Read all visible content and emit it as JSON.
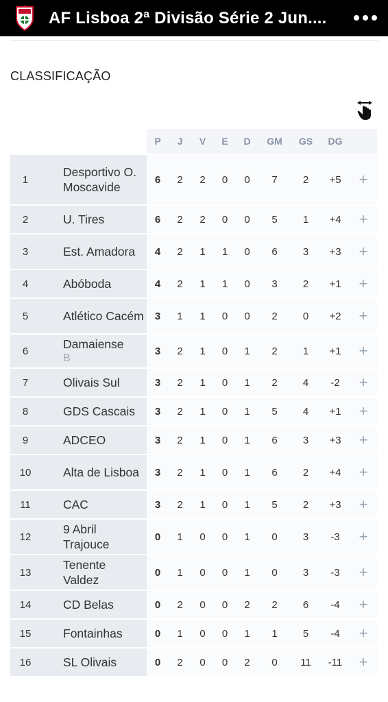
{
  "app": {
    "title": "AF Lisboa 2ª Divisão Série 2 Jun...."
  },
  "section": {
    "title": "CLASSIFICAÇÃO"
  },
  "headers": [
    "P",
    "J",
    "V",
    "E",
    "D",
    "GM",
    "GS",
    "DG"
  ],
  "expand_symbol": "+",
  "rows": [
    {
      "pos": "1",
      "name": "Desportivo O. Moscavide",
      "suffix": "",
      "p": "6",
      "j": "2",
      "v": "2",
      "e": "0",
      "d": "0",
      "gm": "7",
      "gs": "2",
      "dg": "+5"
    },
    {
      "pos": "2",
      "name": "U. Tires",
      "suffix": "",
      "p": "6",
      "j": "2",
      "v": "2",
      "e": "0",
      "d": "0",
      "gm": "5",
      "gs": "1",
      "dg": "+4"
    },
    {
      "pos": "3",
      "name": "Est. Amadora",
      "suffix": "",
      "p": "4",
      "j": "2",
      "v": "1",
      "e": "1",
      "d": "0",
      "gm": "6",
      "gs": "3",
      "dg": "+3"
    },
    {
      "pos": "4",
      "name": "Abóboda",
      "suffix": "",
      "p": "4",
      "j": "2",
      "v": "1",
      "e": "1",
      "d": "0",
      "gm": "3",
      "gs": "2",
      "dg": "+1"
    },
    {
      "pos": "5",
      "name": "Atlético Cacém",
      "suffix": "",
      "p": "3",
      "j": "1",
      "v": "1",
      "e": "0",
      "d": "0",
      "gm": "2",
      "gs": "0",
      "dg": "+2"
    },
    {
      "pos": "6",
      "name": "Damaiense",
      "suffix": "B",
      "p": "3",
      "j": "2",
      "v": "1",
      "e": "0",
      "d": "1",
      "gm": "2",
      "gs": "1",
      "dg": "+1"
    },
    {
      "pos": "7",
      "name": "Olivais Sul",
      "suffix": "",
      "p": "3",
      "j": "2",
      "v": "1",
      "e": "0",
      "d": "1",
      "gm": "2",
      "gs": "4",
      "dg": "-2"
    },
    {
      "pos": "8",
      "name": "GDS Cascais",
      "suffix": "",
      "p": "3",
      "j": "2",
      "v": "1",
      "e": "0",
      "d": "1",
      "gm": "5",
      "gs": "4",
      "dg": "+1"
    },
    {
      "pos": "9",
      "name": "ADCEO",
      "suffix": "",
      "p": "3",
      "j": "2",
      "v": "1",
      "e": "0",
      "d": "1",
      "gm": "6",
      "gs": "3",
      "dg": "+3"
    },
    {
      "pos": "10",
      "name": "Alta de Lisboa",
      "suffix": "",
      "p": "3",
      "j": "2",
      "v": "1",
      "e": "0",
      "d": "1",
      "gm": "6",
      "gs": "2",
      "dg": "+4"
    },
    {
      "pos": "11",
      "name": "CAC",
      "suffix": "",
      "p": "3",
      "j": "2",
      "v": "1",
      "e": "0",
      "d": "1",
      "gm": "5",
      "gs": "2",
      "dg": "+3"
    },
    {
      "pos": "12",
      "name": "9 Abril Trajouce",
      "suffix": "",
      "p": "0",
      "j": "1",
      "v": "0",
      "e": "0",
      "d": "1",
      "gm": "0",
      "gs": "3",
      "dg": "-3"
    },
    {
      "pos": "13",
      "name": "Tenente Valdez",
      "suffix": "",
      "p": "0",
      "j": "1",
      "v": "0",
      "e": "0",
      "d": "1",
      "gm": "0",
      "gs": "3",
      "dg": "-3"
    },
    {
      "pos": "14",
      "name": "CD Belas",
      "suffix": "",
      "p": "0",
      "j": "2",
      "v": "0",
      "e": "0",
      "d": "2",
      "gm": "2",
      "gs": "6",
      "dg": "-4"
    },
    {
      "pos": "15",
      "name": "Fontainhas",
      "suffix": "",
      "p": "0",
      "j": "1",
      "v": "0",
      "e": "0",
      "d": "1",
      "gm": "1",
      "gs": "5",
      "dg": "-4"
    },
    {
      "pos": "16",
      "name": "SL Olivais",
      "suffix": "",
      "p": "0",
      "j": "2",
      "v": "0",
      "e": "0",
      "d": "2",
      "gm": "0",
      "gs": "11",
      "dg": "-11"
    }
  ]
}
